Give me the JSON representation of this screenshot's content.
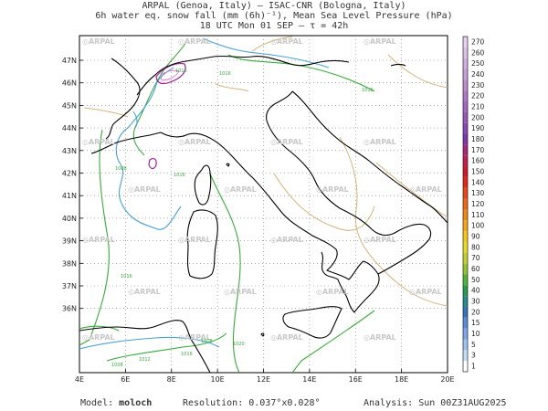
{
  "header": {
    "line1": "ARPAL (Genoa, Italy)  –  ISAC-CNR (Bologna, Italy)",
    "line2": "6h water eq. snow fall (mm (6h)⁻¹), Mean Sea Level Pressure (hPa)",
    "line3": "18 UTC Mon 01 SEP  –  τ = 42h"
  },
  "map": {
    "lon_ticks": [
      "4E",
      "6E",
      "8E",
      "10E",
      "12E",
      "14E",
      "16E",
      "18E",
      "20E"
    ],
    "lat_ticks": [
      "47N",
      "46N",
      "45N",
      "44N",
      "43N",
      "42N",
      "41N",
      "40N",
      "39N",
      "38N",
      "37N",
      "36N"
    ],
    "watermark": "ARPAL",
    "isobar_labels": [
      "1016",
      "1016",
      "1016",
      "1008",
      "1016",
      "1016",
      "1008",
      "1012",
      "1016",
      "1020",
      "1008"
    ],
    "colors": {
      "coast": "#000000",
      "isobar_green": "#3aaa3a",
      "isobar_blue": "#4aa0d8",
      "isobar_tan": "#d2b47a",
      "snow_purple": "#a020a0"
    }
  },
  "colorbar": {
    "levels": [
      "270",
      "260",
      "250",
      "240",
      "230",
      "220",
      "210",
      "200",
      "190",
      "180",
      "170",
      "160",
      "150",
      "140",
      "130",
      "120",
      "110",
      "100",
      "90",
      "80",
      "70",
      "60",
      "50",
      "40",
      "30",
      "20",
      "15",
      "10",
      "5",
      "3",
      "1"
    ],
    "colors": [
      "#e8d0ee",
      "#dcc0e8",
      "#d0b0e0",
      "#c8a0d8",
      "#bc8cd0",
      "#b078c8",
      "#a468c0",
      "#9858b8",
      "#8c48b0",
      "#8038a8",
      "#a8287c",
      "#c02050",
      "#d01a2c",
      "#e0281c",
      "#e84818",
      "#ee6818",
      "#f08818",
      "#f4a818",
      "#f4c818",
      "#e6dc28",
      "#c4d030",
      "#94c434",
      "#52b43c",
      "#289c4c",
      "#2a8c8c",
      "#3a74b8",
      "#5a8cd8",
      "#7ca8e4",
      "#9ec4ee",
      "#c4dcf4",
      "#ffffff"
    ]
  },
  "footer": {
    "model_label": "Model:",
    "model_name": "moloch",
    "resolution": "Resolution: 0.037°x0.028°",
    "analysis": "Analysis: Sun 00Z31AUG2025"
  }
}
